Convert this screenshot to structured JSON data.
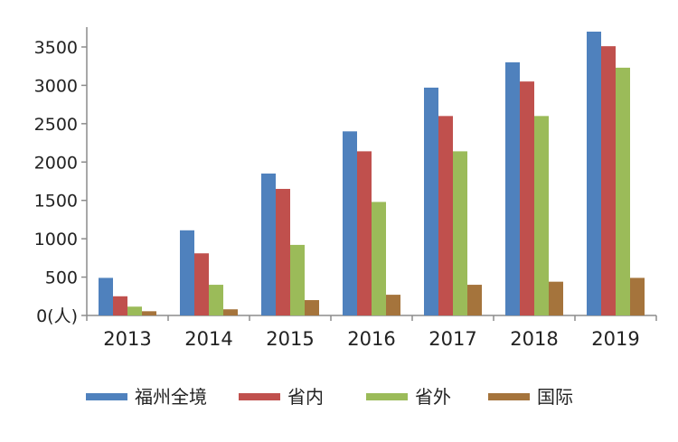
{
  "chart_data": {
    "type": "bar",
    "categories": [
      "2013",
      "2014",
      "2015",
      "2016",
      "2017",
      "2018",
      "2019"
    ],
    "series": [
      {
        "name": "福州全境",
        "color": "#4f81bd",
        "values": [
          490,
          1110,
          1850,
          2400,
          2970,
          3300,
          3700
        ]
      },
      {
        "name": "省内",
        "color": "#c0504d",
        "values": [
          250,
          810,
          1650,
          2140,
          2600,
          3050,
          3510
        ]
      },
      {
        "name": "省外",
        "color": "#9bbb59",
        "values": [
          115,
          400,
          920,
          1480,
          2140,
          2600,
          3230
        ]
      },
      {
        "name": "国际",
        "color": "#a5743c",
        "values": [
          55,
          80,
          200,
          270,
          400,
          440,
          490
        ]
      }
    ],
    "y_ticks": [
      "0(人)",
      "500",
      "1000",
      "1500",
      "2000",
      "2500",
      "3000",
      "3500"
    ],
    "ylim": [
      0,
      3700
    ],
    "legend_position": "bottom",
    "grid": false
  }
}
